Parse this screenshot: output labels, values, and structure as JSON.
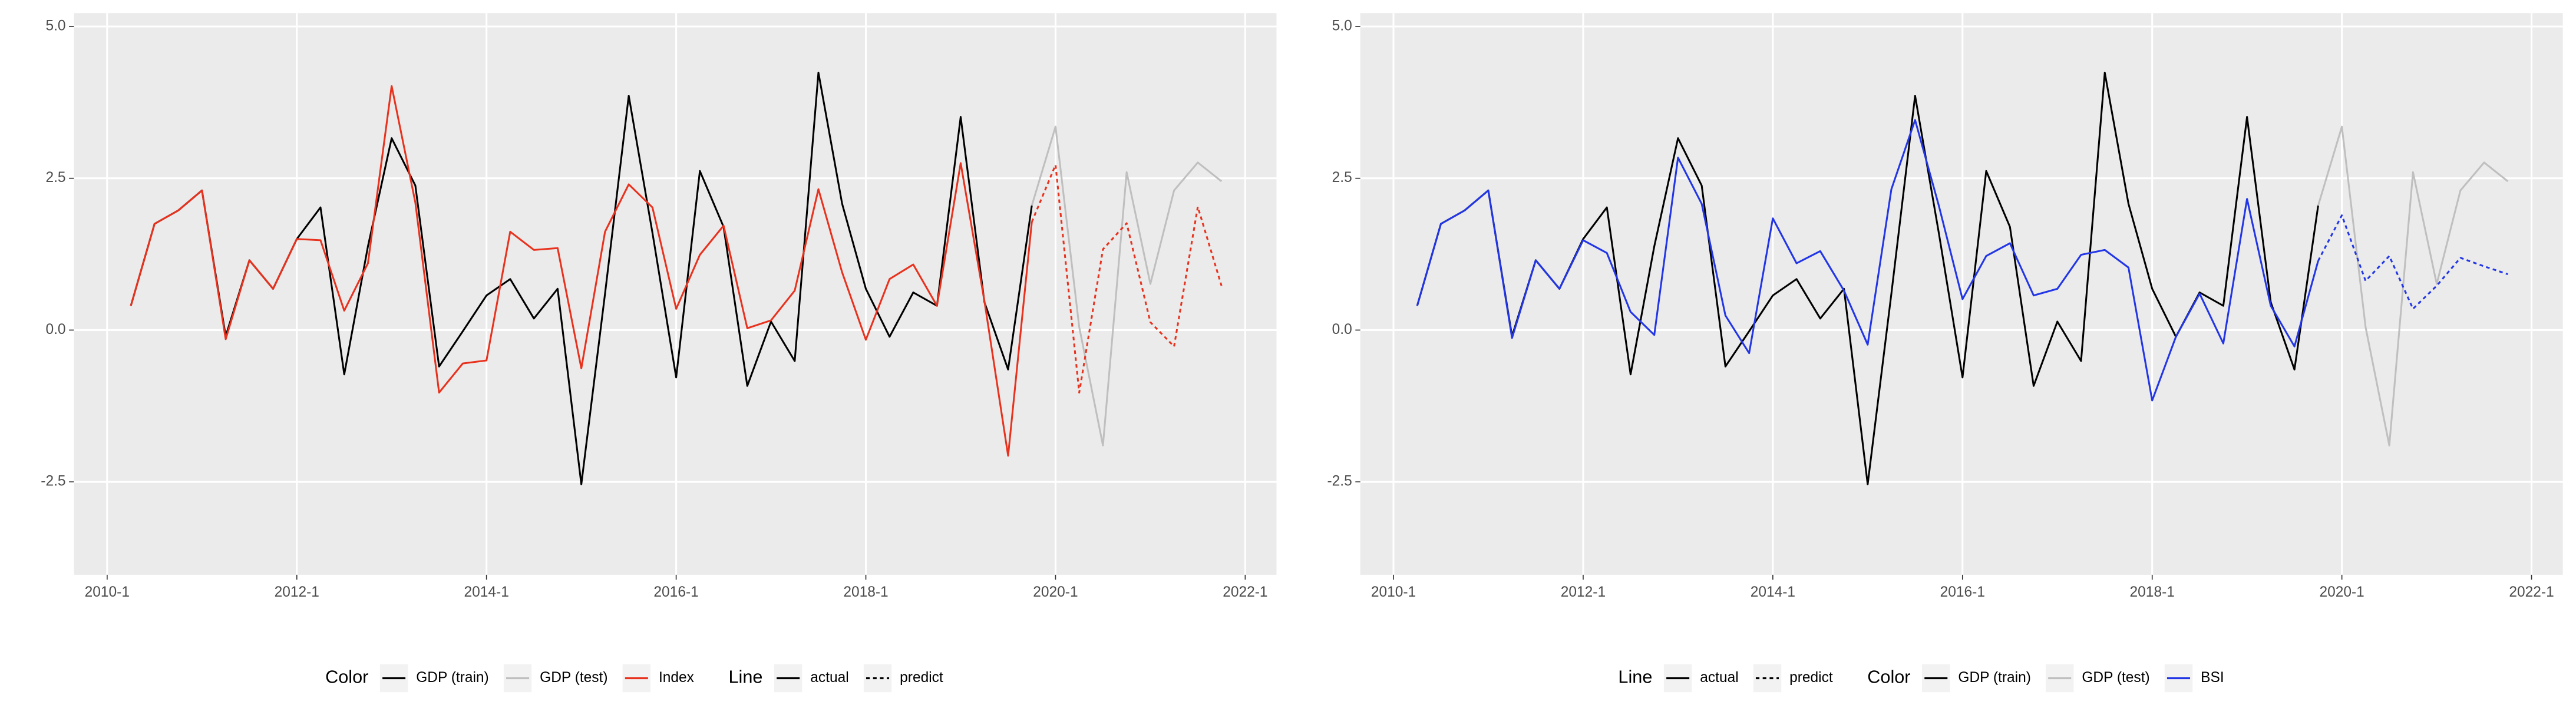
{
  "chart_data": [
    {
      "type": "line",
      "x": [
        2010.25,
        2010.5,
        2010.75,
        2011,
        2011.25,
        2011.5,
        2011.75,
        2012,
        2012.25,
        2012.5,
        2012.75,
        2013,
        2013.25,
        2013.5,
        2013.75,
        2014,
        2014.25,
        2014.5,
        2014.75,
        2015,
        2015.25,
        2015.5,
        2015.75,
        2016,
        2016.25,
        2016.5,
        2016.75,
        2017,
        2017.25,
        2017.5,
        2017.75,
        2018,
        2018.25,
        2018.5,
        2018.75,
        2019,
        2019.25,
        2019.5,
        2019.75,
        2020,
        2020.25,
        2020.5,
        2020.75,
        2021,
        2021.25,
        2021.5,
        2021.75
      ],
      "series": [
        {
          "color": "#000000",
          "linetype": "solid",
          "values": [
            0.4,
            1.75,
            1.97,
            2.3,
            -0.1,
            1.15,
            0.68,
            1.5,
            2.02,
            -0.73,
            1.38,
            3.16,
            2.38,
            -0.6,
            -0.02,
            0.57,
            0.84,
            0.19,
            0.68,
            -2.54,
            0.6,
            3.86,
            1.6,
            -0.78,
            2.62,
            1.7,
            -0.92,
            0.14,
            -0.51,
            4.24,
            2.08,
            0.68,
            -0.11,
            0.62,
            0.4,
            3.51,
            0.46,
            -0.65,
            2.05,
            null,
            null,
            null,
            null,
            null,
            null,
            null,
            null
          ]
        },
        {
          "color": "#bfbfbf",
          "linetype": "solid",
          "values": [
            null,
            null,
            null,
            null,
            null,
            null,
            null,
            null,
            null,
            null,
            null,
            null,
            null,
            null,
            null,
            null,
            null,
            null,
            null,
            null,
            null,
            null,
            null,
            null,
            null,
            null,
            null,
            null,
            null,
            null,
            null,
            null,
            null,
            null,
            null,
            null,
            null,
            null,
            2.05,
            3.35,
            0.05,
            -1.9,
            2.6,
            0.76,
            2.3,
            2.76,
            2.45
          ]
        },
        {
          "color": "#e8321e",
          "linetype": "solid",
          "values": [
            0.4,
            1.75,
            1.97,
            2.3,
            -0.15,
            1.15,
            0.68,
            1.5,
            1.48,
            0.32,
            1.1,
            4.02,
            2.1,
            -1.03,
            -0.55,
            -0.5,
            1.62,
            1.32,
            1.35,
            -0.63,
            1.62,
            2.4,
            2.02,
            0.35,
            1.24,
            1.72,
            0.03,
            0.16,
            0.65,
            2.32,
            0.95,
            -0.16,
            0.84,
            1.08,
            0.4,
            2.75,
            0.48,
            -2.07,
            1.78,
            null,
            null,
            null,
            null,
            null,
            null,
            null,
            null
          ]
        },
        {
          "color": "#e8321e",
          "linetype": "dotted",
          "values": [
            null,
            null,
            null,
            null,
            null,
            null,
            null,
            null,
            null,
            null,
            null,
            null,
            null,
            null,
            null,
            null,
            null,
            null,
            null,
            null,
            null,
            null,
            null,
            null,
            null,
            null,
            null,
            null,
            null,
            null,
            null,
            null,
            null,
            null,
            null,
            null,
            null,
            null,
            1.78,
            2.72,
            -1.03,
            1.33,
            1.76,
            0.13,
            -0.27,
            2.03,
            0.73
          ]
        }
      ],
      "xlim": [
        2009.65,
        2022.33
      ],
      "xticks": [
        {
          "value": 2010,
          "label": "2010-1"
        },
        {
          "value": 2012,
          "label": "2012-1"
        },
        {
          "value": 2014,
          "label": "2014-1"
        },
        {
          "value": 2016,
          "label": "2016-1"
        },
        {
          "value": 2018,
          "label": "2018-1"
        },
        {
          "value": 2020,
          "label": "2020-1"
        },
        {
          "value": 2022,
          "label": "2022-1"
        }
      ],
      "ylim": [
        -4.03,
        5.22
      ],
      "yticks": [
        {
          "value": -2.5,
          "label": "-2.5"
        },
        {
          "value": 0,
          "label": "0.0"
        },
        {
          "value": 2.5,
          "label": "2.5"
        },
        {
          "value": 5,
          "label": "5.0"
        }
      ],
      "grid": true,
      "legends": [
        {
          "title": "Color",
          "entries": [
            {
              "name": "GDP (train)",
              "color": "#000000",
              "linetype": "solid"
            },
            {
              "name": "GDP (test)",
              "color": "#bfbfbf",
              "linetype": "solid"
            },
            {
              "name": "Index",
              "color": "#e8321e",
              "linetype": "solid"
            }
          ]
        },
        {
          "title": "Line",
          "entries": [
            {
              "name": "actual",
              "color": "#000000",
              "linetype": "solid"
            },
            {
              "name": "predict",
              "color": "#000000",
              "linetype": "dotted"
            }
          ]
        }
      ]
    },
    {
      "type": "line",
      "x": [
        2010.25,
        2010.5,
        2010.75,
        2011,
        2011.25,
        2011.5,
        2011.75,
        2012,
        2012.25,
        2012.5,
        2012.75,
        2013,
        2013.25,
        2013.5,
        2013.75,
        2014,
        2014.25,
        2014.5,
        2014.75,
        2015,
        2015.25,
        2015.5,
        2015.75,
        2016,
        2016.25,
        2016.5,
        2016.75,
        2017,
        2017.25,
        2017.5,
        2017.75,
        2018,
        2018.25,
        2018.5,
        2018.75,
        2019,
        2019.25,
        2019.5,
        2019.75,
        2020,
        2020.25,
        2020.5,
        2020.75,
        2021,
        2021.25,
        2021.5,
        2021.75
      ],
      "series": [
        {
          "color": "#000000",
          "linetype": "solid",
          "values": [
            0.4,
            1.75,
            1.97,
            2.3,
            -0.1,
            1.15,
            0.68,
            1.5,
            2.02,
            -0.73,
            1.38,
            3.16,
            2.38,
            -0.6,
            -0.02,
            0.57,
            0.84,
            0.19,
            0.68,
            -2.54,
            0.6,
            3.86,
            1.6,
            -0.78,
            2.62,
            1.7,
            -0.92,
            0.14,
            -0.51,
            4.24,
            2.08,
            0.68,
            -0.11,
            0.62,
            0.4,
            3.51,
            0.46,
            -0.65,
            2.05,
            null,
            null,
            null,
            null,
            null,
            null,
            null,
            null
          ]
        },
        {
          "color": "#bfbfbf",
          "linetype": "solid",
          "values": [
            null,
            null,
            null,
            null,
            null,
            null,
            null,
            null,
            null,
            null,
            null,
            null,
            null,
            null,
            null,
            null,
            null,
            null,
            null,
            null,
            null,
            null,
            null,
            null,
            null,
            null,
            null,
            null,
            null,
            null,
            null,
            null,
            null,
            null,
            null,
            null,
            null,
            null,
            2.05,
            3.35,
            0.05,
            -1.9,
            2.6,
            0.76,
            2.3,
            2.76,
            2.45
          ]
        },
        {
          "color": "#2236e6",
          "linetype": "solid",
          "values": [
            0.4,
            1.75,
            1.97,
            2.3,
            -0.13,
            1.15,
            0.68,
            1.48,
            1.27,
            0.3,
            -0.08,
            2.84,
            2.08,
            0.24,
            -0.38,
            1.84,
            1.1,
            1.3,
            0.65,
            -0.24,
            2.32,
            3.46,
            2.05,
            0.51,
            1.22,
            1.43,
            0.57,
            0.68,
            1.24,
            1.32,
            1.03,
            -1.16,
            -0.11,
            0.6,
            -0.22,
            2.16,
            0.4,
            -0.27,
            1.14,
            null,
            null,
            null,
            null,
            null,
            null,
            null,
            null
          ]
        },
        {
          "color": "#2236e6",
          "linetype": "dotted",
          "values": [
            null,
            null,
            null,
            null,
            null,
            null,
            null,
            null,
            null,
            null,
            null,
            null,
            null,
            null,
            null,
            null,
            null,
            null,
            null,
            null,
            null,
            null,
            null,
            null,
            null,
            null,
            null,
            null,
            null,
            null,
            null,
            null,
            null,
            null,
            null,
            null,
            null,
            null,
            1.14,
            1.89,
            0.81,
            1.22,
            0.35,
            0.73,
            1.19,
            1.05,
            0.92
          ]
        }
      ],
      "xlim": [
        2009.65,
        2022.33
      ],
      "xticks": [
        {
          "value": 2010,
          "label": "2010-1"
        },
        {
          "value": 2012,
          "label": "2012-1"
        },
        {
          "value": 2014,
          "label": "2014-1"
        },
        {
          "value": 2016,
          "label": "2016-1"
        },
        {
          "value": 2018,
          "label": "2018-1"
        },
        {
          "value": 2020,
          "label": "2020-1"
        },
        {
          "value": 2022,
          "label": "2022-1"
        }
      ],
      "ylim": [
        -4.03,
        5.22
      ],
      "yticks": [
        {
          "value": -2.5,
          "label": "-2.5"
        },
        {
          "value": 0,
          "label": "0.0"
        },
        {
          "value": 2.5,
          "label": "2.5"
        },
        {
          "value": 5,
          "label": "5.0"
        }
      ],
      "grid": true,
      "legends": [
        {
          "title": "Line",
          "entries": [
            {
              "name": "actual",
              "color": "#000000",
              "linetype": "solid"
            },
            {
              "name": "predict",
              "color": "#000000",
              "linetype": "dotted"
            }
          ]
        },
        {
          "title": "Color",
          "entries": [
            {
              "name": "GDP (train)",
              "color": "#000000",
              "linetype": "solid"
            },
            {
              "name": "GDP (test)",
              "color": "#bfbfbf",
              "linetype": "solid"
            },
            {
              "name": "BSI",
              "color": "#2236e6",
              "linetype": "solid"
            }
          ]
        }
      ]
    }
  ]
}
